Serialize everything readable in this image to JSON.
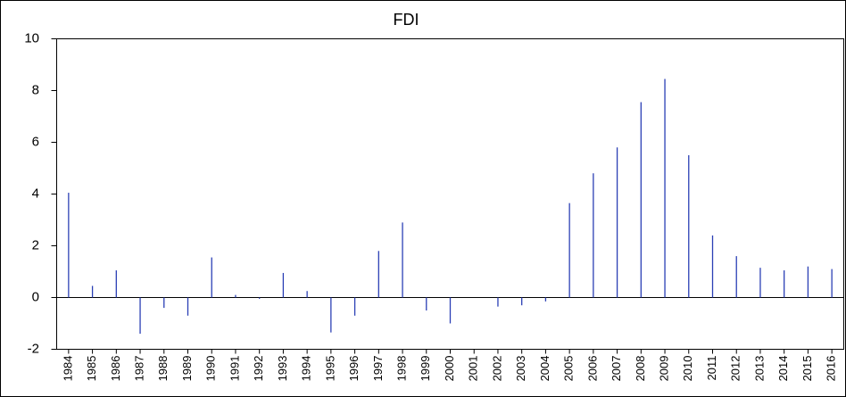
{
  "chart_data": {
    "type": "spike",
    "title": "FDI",
    "categories": [
      "1984",
      "1985",
      "1986",
      "1987",
      "1988",
      "1989",
      "1990",
      "1991",
      "1992",
      "1993",
      "1994",
      "1995",
      "1996",
      "1997",
      "1998",
      "1999",
      "2000",
      "2001",
      "2002",
      "2003",
      "2004",
      "2005",
      "2006",
      "2007",
      "2008",
      "2009",
      "2010",
      "2011",
      "2012",
      "2013",
      "2014",
      "2015",
      "2016"
    ],
    "values": [
      4.05,
      0.45,
      1.05,
      -1.4,
      -0.4,
      -0.7,
      1.55,
      0.1,
      -0.05,
      0.95,
      0.25,
      -1.35,
      -0.7,
      1.8,
      2.9,
      -0.5,
      -1.0,
      0,
      -0.35,
      -0.3,
      -0.15,
      3.65,
      4.8,
      5.8,
      7.55,
      8.45,
      5.5,
      2.4,
      1.6,
      1.15,
      1.05,
      1.2,
      1.1
    ],
    "color": "#2a3fb5",
    "ylim": [
      -2,
      10
    ],
    "yticks": [
      -2,
      0,
      2,
      4,
      6,
      8,
      10
    ],
    "grid": false
  }
}
